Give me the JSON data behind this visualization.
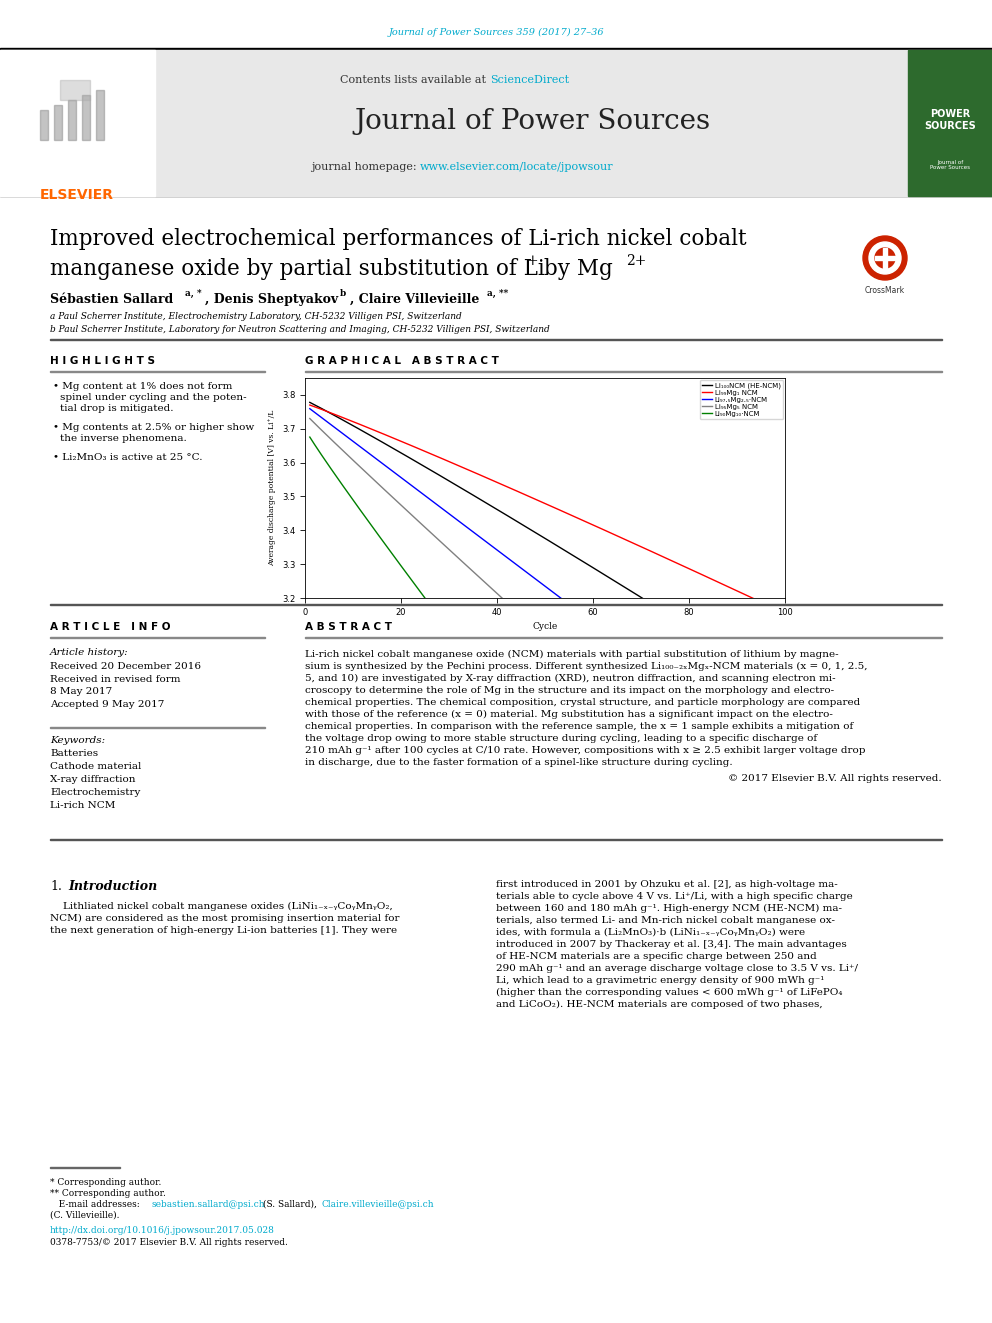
{
  "page_bg": "#ffffff",
  "journal_citation": "Journal of Power Sources 359 (2017) 27–36",
  "journal_citation_color": "#00aacc",
  "journal_name": "Journal of Power Sources",
  "sciencedirect_color": "#00aacc",
  "homepage_url": "www.elsevier.com/locate/jpowsour",
  "homepage_url_color": "#00aacc",
  "elsevier_color": "#ff6600",
  "affiliation_a": "a Paul Scherrer Institute, Electrochemistry Laboratory, CH-5232 Villigen PSI, Switzerland",
  "affiliation_b": "b Paul Scherrer Institute, Laboratory for Neutron Scattering and Imaging, CH-5232 Villigen PSI, Switzerland",
  "highlights_title": "H I G H L I G H T S",
  "highlights": [
    "Mg content at 1% does not form\nspinel under cycling and the poten-\ntial drop is mitigated.",
    "Mg contents at 2.5% or higher show\nthe inverse phenomena.",
    "Li₂MnO₃ is active at 25 °C."
  ],
  "graphical_abstract_title": "G R A P H I C A L   A B S T R A C T",
  "article_info_title": "A R T I C L E   I N F O",
  "article_history_label": "Article history:",
  "received_date": "Received 20 December 2016",
  "accepted_date": "Accepted 9 May 2017",
  "keywords_label": "Keywords:",
  "keywords": [
    "Batteries",
    "Cathode material",
    "X-ray diffraction",
    "Electrochemistry",
    "Li-rich NCM"
  ],
  "abstract_title": "A B S T R A C T",
  "abstract_text": "Li-rich nickel cobalt manganese oxide (NCM) materials with partial substitution of lithium by magnesium is synthesized by the Pechini process. Different synthesized Li₁₀₀₋₂ₓMgₓ-NCM materials (x = 0, 1, 2.5, 5, and 10) are investigated by X-ray diffraction (XRD), neutron diffraction, and scanning electron microscopy to determine the role of Mg in the structure and its impact on the morphology and electrochemical properties. The chemical composition, crystal structure, and particle morphology are compared with those of the reference (x = 0) material. Mg substitution has a significant impact on the electrochemical properties. In comparison with the reference sample, the x = 1 sample exhibits a mitigation of the voltage drop owing to more stable structure during cycling, leading to a specific discharge of 210 mAh g⁻¹ after 100 cycles at C/10 rate. However, compositions with x ≥ 2.5 exhibit larger voltage drop in discharge, due to the faster formation of a spinel-like structure during cycling.",
  "copyright_text": "© 2017 Elsevier B.V. All rights reserved.",
  "intro_text_left": "    Lithliated nickel cobalt manganese oxides (LiNi₁₋ₓ₋ᵧCoᵧMnᵧO₂,\nNCM) are considered as the most promising insertion material for\nthe next generation of high-energy Li-ion batteries [1]. They were",
  "intro_text_right": "first introduced in 2001 by Ohzuku et al. [2], as high-voltage ma-\nterials able to cycle above 4 V vs. Li⁺/Li, with a high specific charge\nbetween 160 and 180 mAh g⁻¹. High-energy NCM (HE-NCM) ma-\nterials, also termed Li- and Mn-rich nickel cobalt manganese ox-\nides, with formula a (Li₂MnO₃)·b (LiNi₁₋ₓ₋ᵧCoᵧMnᵧO₂) were\nintroduced in 2007 by Thackeray et al. [3,4]. The main advantages\nof HE-NCM materials are a specific charge between 250 and\n290 mAh g⁻¹ and an average discharge voltage close to 3.5 V vs. Li⁺/\nLi, which lead to a gravimetric energy density of 900 mWh g⁻¹\n(higher than the corresponding values < 600 mWh g⁻¹ of LiFePO₄\nand LiCoO₂). HE-NCM materials are composed of two phases,",
  "footnote_star": "* Corresponding author.",
  "footnote_dstar": "** Corresponding author.",
  "email1": "sebastien.sallard@psi.ch",
  "email1_color": "#00aacc",
  "email2": "Claire.villevieille@psi.ch",
  "email2_color": "#00aacc",
  "doi_url": "http://dx.doi.org/10.1016/j.jpowsour.2017.05.028",
  "doi_color": "#00aacc",
  "issn_text": "0378-7753/© 2017 Elsevier B.V. All rights reserved.",
  "graph_legend": [
    "Li₁₀₀NCM (HE-NCM)",
    "Li₉₉Mg₁ NCM",
    "Li₉₇.₅Mg₂.₅·NCM",
    "Li₉₅Mg₅ NCM",
    "Li₉₀Mg₁₀·NCM"
  ],
  "graph_colors": [
    "#000000",
    "#ff0000",
    "#0000ff",
    "#808080",
    "#008000"
  ],
  "graph_ylabel": "Average discharge potential [V] vs. Li⁺/L",
  "graph_xlabel": "Cycle",
  "graph_ylim": [
    3.2,
    3.85
  ],
  "graph_xlim": [
    0,
    100
  ],
  "graph_yticks": [
    3.2,
    3.3,
    3.4,
    3.5,
    3.6,
    3.7,
    3.8
  ],
  "graph_xticks": [
    0,
    20,
    40,
    60,
    80,
    100
  ],
  "header_bg": "#e8e8e8"
}
